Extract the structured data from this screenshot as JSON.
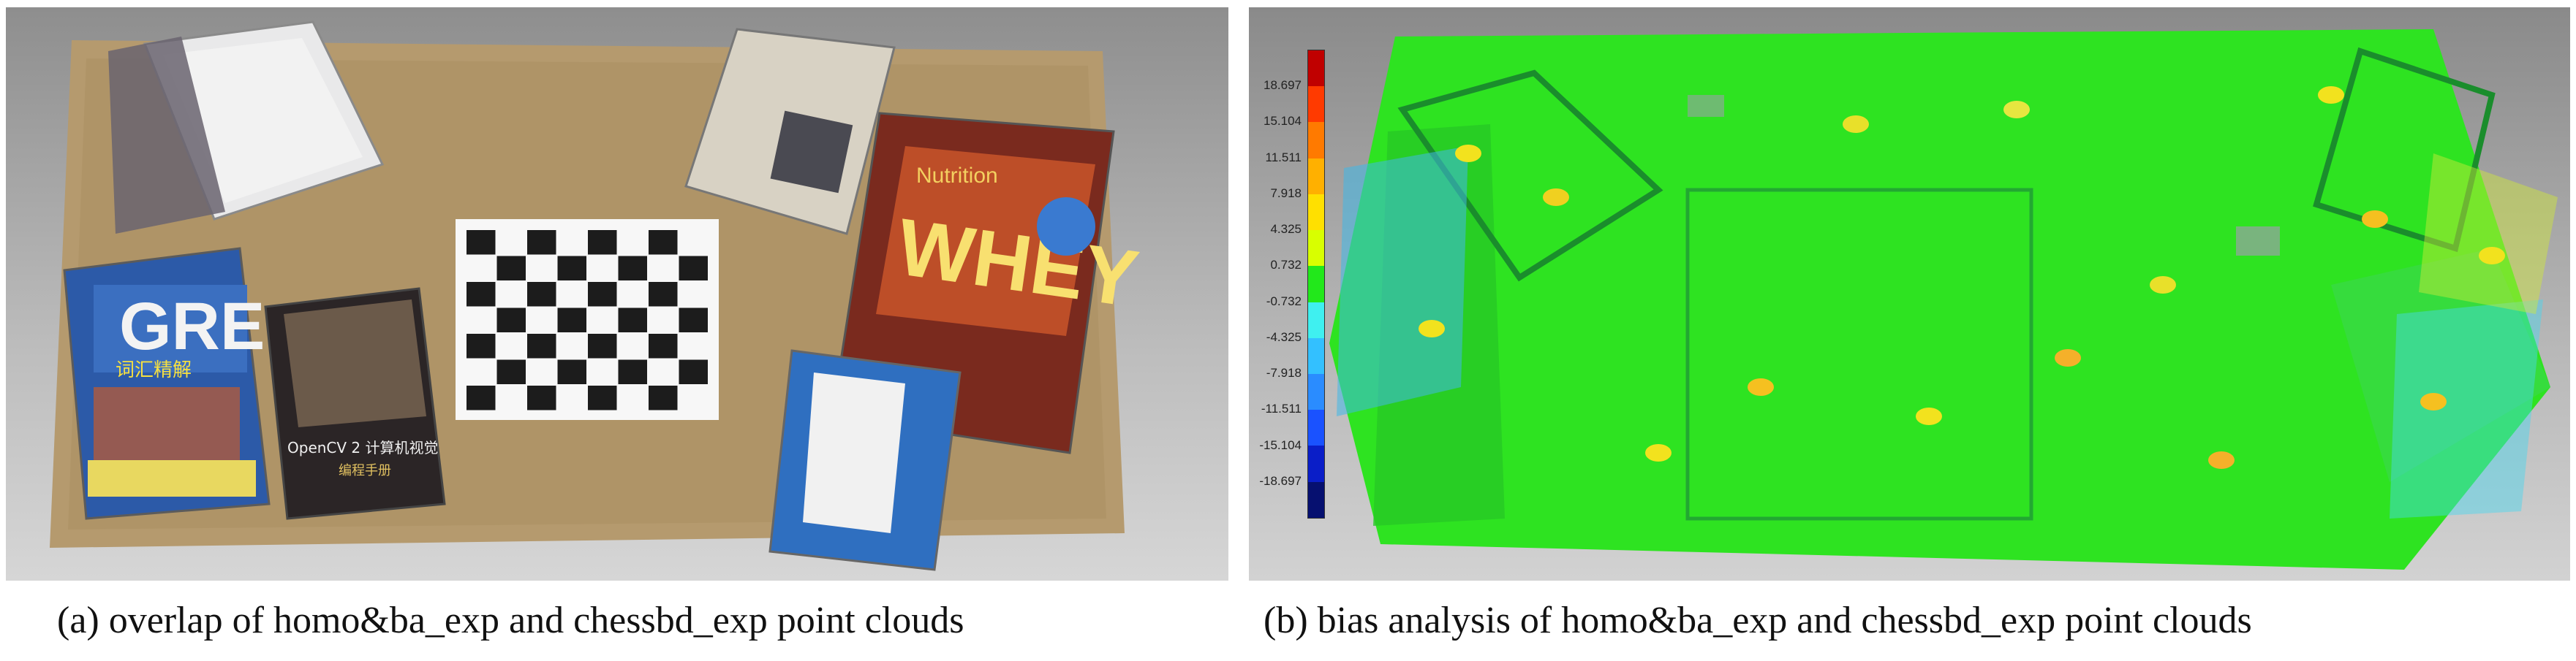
{
  "figure": {
    "panel_a": {
      "caption": "(a) overlap of homo&ba_exp and chessbd_exp point clouds",
      "book_texts": {
        "gre_title": "GRE",
        "gre_subtitle": "词汇精解",
        "opencv": "OpenCV 2 计算机视觉",
        "opencv_sub": "编程手册",
        "whey_brand": "WHEY",
        "whey_top": "Nutrition"
      }
    },
    "panel_b": {
      "caption": "(b) bias analysis of homo&ba_exp and chessbd_exp point clouds",
      "scale_labels": [
        "18.697",
        "15.104",
        "11.511",
        "7.918",
        "4.325",
        "0.732",
        "-0.732",
        "-4.325",
        "-7.918",
        "-11.511",
        "-15.104",
        "-18.697"
      ],
      "scale_colors": [
        "#c00000",
        "#ff3a00",
        "#ff7a00",
        "#ffb000",
        "#ffe000",
        "#d8ff00",
        "#22e81b",
        "#3ff0f0",
        "#33c0ff",
        "#2a8cff",
        "#1a52ff",
        "#0a1ec8",
        "#061070"
      ]
    }
  }
}
